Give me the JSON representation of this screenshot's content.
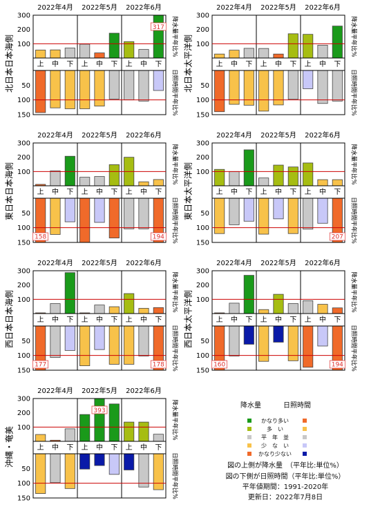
{
  "chart_data": [
    {
      "type": "bar",
      "region": "北日本日本海側",
      "months": [
        "2022年4月",
        "2022年5月",
        "2022年6月"
      ],
      "categories": [
        "上",
        "中",
        "下",
        "上",
        "中",
        "下",
        "上",
        "中",
        "下"
      ],
      "precip_axis_label": "降水量平年比%",
      "sunshine_axis_label": "日照時間平年比%",
      "precip_ticks": [
        "300",
        "200",
        "100"
      ],
      "sun_ticks": [
        "50",
        "100",
        "150"
      ],
      "precip": [
        56,
        57,
        70,
        97,
        36,
        174,
        115,
        60,
        317
      ],
      "precip_class": [
        "yellow",
        "yellow",
        "gray",
        "gray",
        "orange",
        "green",
        "olive",
        "gray",
        "green"
      ],
      "precip_overflow": [
        "",
        "",
        "",
        "",
        "",
        "",
        "",
        "",
        "317"
      ],
      "sunshine": [
        143,
        127,
        130,
        130,
        121,
        97,
        100,
        104,
        68
      ],
      "sun_class": [
        "orange",
        "yellow",
        "yellow",
        "yellow",
        "yellow",
        "gray",
        "gray",
        "gray",
        "lav"
      ],
      "sun_overflow": [
        "",
        "",
        "",
        "",
        "",
        "",
        "",
        "",
        ""
      ]
    },
    {
      "type": "bar",
      "region": "北日本太平洋側",
      "months": [
        "2022年4月",
        "2022年5月",
        "2022年6月"
      ],
      "categories": [
        "上",
        "中",
        "下",
        "上",
        "中",
        "下",
        "上",
        "中",
        "下"
      ],
      "precip_axis_label": "降水量平年比%",
      "sunshine_axis_label": "日照時間平年比%",
      "precip_ticks": [
        "300",
        "200",
        "100"
      ],
      "sun_ticks": [
        "50",
        "100",
        "150"
      ],
      "precip": [
        28,
        55,
        68,
        67,
        28,
        170,
        166,
        90,
        224
      ],
      "precip_class": [
        "yellow",
        "yellow",
        "gray",
        "gray",
        "orange",
        "olive",
        "olive",
        "gray",
        "green"
      ],
      "precip_overflow": [
        "",
        "",
        "",
        "",
        "",
        "",
        "",
        "",
        ""
      ],
      "sunshine": [
        140,
        115,
        118,
        138,
        117,
        98,
        62,
        112,
        104
      ],
      "sun_class": [
        "orange",
        "yellow",
        "yellow",
        "yellow",
        "yellow",
        "gray",
        "lav",
        "gray",
        "gray"
      ],
      "sun_overflow": [
        "",
        "",
        "",
        "",
        "",
        "",
        "",
        "",
        ""
      ]
    },
    {
      "type": "bar",
      "region": "東日本日本海側",
      "months": [
        "2022年4月",
        "2022年5月",
        "2022年6月"
      ],
      "categories": [
        "上",
        "中",
        "下",
        "上",
        "中",
        "下",
        "上",
        "中",
        "下"
      ],
      "precip_axis_label": "降水量平年比%",
      "sunshine_axis_label": "日照時間平年比%",
      "precip_ticks": [
        "300",
        "200",
        "100"
      ],
      "sun_ticks": [
        "50",
        "100",
        "150"
      ],
      "precip": [
        10,
        105,
        207,
        60,
        65,
        148,
        200,
        28,
        44
      ],
      "precip_class": [
        "orange",
        "gray",
        "green",
        "gray",
        "gray",
        "olive",
        "olive",
        "yellow",
        "yellow"
      ],
      "precip_overflow": [
        "",
        "",
        "",
        "",
        "",
        "",
        "",
        "",
        ""
      ],
      "sunshine": [
        158,
        123,
        80,
        158,
        82,
        135,
        104,
        104,
        194
      ],
      "sun_class": [
        "orange",
        "yellow",
        "lav",
        "orange",
        "lav",
        "orange",
        "gray",
        "gray",
        "orange"
      ],
      "sun_overflow": [
        "158",
        "",
        "",
        "",
        "",
        "",
        "",
        "",
        "194"
      ]
    },
    {
      "type": "bar",
      "region": "東日本太平洋側",
      "months": [
        "2022年4月",
        "2022年5月",
        "2022年6月"
      ],
      "categories": [
        "上",
        "中",
        "下",
        "上",
        "中",
        "下",
        "上",
        "中",
        "下"
      ],
      "precip_axis_label": "降水量平年比%",
      "sunshine_axis_label": "日照時間平年比%",
      "precip_ticks": [
        "300",
        "200",
        "100"
      ],
      "sun_ticks": [
        "50",
        "100",
        "150"
      ],
      "precip": [
        115,
        100,
        252,
        55,
        145,
        132,
        160,
        43,
        43
      ],
      "precip_class": [
        "olive",
        "gray",
        "green",
        "gray",
        "olive",
        "olive",
        "olive",
        "yellow",
        "yellow"
      ],
      "precip_overflow": [
        "",
        "",
        "",
        "",
        "",
        "",
        "",
        "",
        ""
      ],
      "sunshine": [
        120,
        90,
        78,
        122,
        70,
        120,
        105,
        85,
        207
      ],
      "sun_class": [
        "yellow",
        "gray",
        "lav",
        "yellow",
        "lav",
        "yellow",
        "gray",
        "lav",
        "orange"
      ],
      "sun_overflow": [
        "",
        "",
        "",
        "",
        "",
        "",
        "",
        "",
        "207"
      ]
    },
    {
      "type": "bar",
      "region": "西日本日本海側",
      "months": [
        "2022年4月",
        "2022年5月",
        "2022年6月"
      ],
      "categories": [
        "上",
        "中",
        "下",
        "上",
        "中",
        "下",
        "上",
        "中",
        "下"
      ],
      "precip_axis_label": "降水量平年比%",
      "sunshine_axis_label": "日照時間平年比%",
      "precip_ticks": [
        "300",
        "200",
        "100"
      ],
      "sun_ticks": [
        "50",
        "100",
        "150"
      ],
      "precip": [
        5,
        70,
        287,
        5,
        60,
        48,
        140,
        37,
        42
      ],
      "precip_class": [
        "orange",
        "gray",
        "green",
        "orange",
        "gray",
        "yellow",
        "olive",
        "yellow",
        "orange"
      ],
      "precip_overflow": [
        "",
        "",
        "",
        "",
        "",
        "",
        "",
        "",
        ""
      ],
      "sunshine": [
        177,
        107,
        83,
        135,
        80,
        130,
        130,
        102,
        178
      ],
      "sun_class": [
        "orange",
        "gray",
        "lav",
        "yellow",
        "lav",
        "yellow",
        "yellow",
        "gray",
        "orange"
      ],
      "sun_overflow": [
        "177",
        "",
        "",
        "",
        "",
        "",
        "",
        "",
        "178"
      ]
    },
    {
      "type": "bar",
      "region": "西日本太平洋側",
      "months": [
        "2022年4月",
        "2022年5月",
        "2022年6月"
      ],
      "categories": [
        "上",
        "中",
        "下",
        "上",
        "中",
        "下",
        "上",
        "中",
        "下"
      ],
      "precip_axis_label": "降水量平年比%",
      "sunshine_axis_label": "日照時間平年比%",
      "precip_ticks": [
        "300",
        "200",
        "100"
      ],
      "sun_ticks": [
        "50",
        "100",
        "150"
      ],
      "precip": [
        5,
        73,
        268,
        28,
        135,
        70,
        90,
        65,
        40
      ],
      "precip_class": [
        "orange",
        "gray",
        "green",
        "yellow",
        "olive",
        "gray",
        "gray",
        "yellow",
        "orange"
      ],
      "precip_overflow": [
        "",
        "",
        "",
        "",
        "",
        "",
        "",
        "",
        ""
      ],
      "sunshine": [
        160,
        102,
        62,
        120,
        55,
        118,
        140,
        68,
        194
      ],
      "sun_class": [
        "orange",
        "gray",
        "blue",
        "yellow",
        "blue",
        "yellow",
        "orange",
        "lav",
        "orange"
      ],
      "sun_overflow": [
        "160",
        "",
        "",
        "",
        "",
        "",
        "",
        "",
        "194"
      ]
    },
    {
      "type": "bar",
      "region": "沖縄・奄美",
      "months": [
        "2022年4月",
        "2022年5月",
        "2022年6月"
      ],
      "categories": [
        "上",
        "中",
        "下",
        "上",
        "中",
        "下",
        "上",
        "中",
        "下"
      ],
      "precip_axis_label": "降水量平年比%",
      "sunshine_axis_label": "日照時間平年比%",
      "precip_ticks": [
        "300",
        "200",
        "100"
      ],
      "sun_ticks": [
        "50",
        "100",
        "150"
      ],
      "precip": [
        48,
        8,
        88,
        188,
        393,
        262,
        135,
        135,
        50
      ],
      "precip_class": [
        "yellow",
        "orange",
        "gray",
        "green",
        "green",
        "green",
        "olive",
        "olive",
        "gray"
      ],
      "precip_overflow": [
        "",
        "",
        "",
        "",
        "393",
        "",
        "",
        "",
        ""
      ],
      "sunshine": [
        135,
        98,
        118,
        52,
        40,
        70,
        55,
        113,
        122
      ],
      "sun_class": [
        "yellow",
        "gray",
        "yellow",
        "blue",
        "blue",
        "lav",
        "blue",
        "gray",
        "yellow"
      ],
      "sun_overflow": [
        "",
        "",
        "",
        "",
        "",
        "",
        "",
        "",
        ""
      ]
    }
  ],
  "legend": {
    "col1": "降水量",
    "col2": "日照時間",
    "rows": [
      {
        "label": "かなり多い",
        "precip": "#1a9a1a",
        "sun": "#f06a2a"
      },
      {
        "label": "多　い",
        "precip": "#a6bd12",
        "sun": "#f8c24a"
      },
      {
        "label": "平　年　並",
        "precip": "#c8c8c8",
        "sun": "#c8c8c8"
      },
      {
        "label": "少　な　い",
        "precip": "#f8c24a",
        "sun": "#c8c8f8"
      },
      {
        "label": "かなり少ない",
        "precip": "#f06a2a",
        "sun": "#0a1aa8"
      }
    ]
  },
  "notes": [
    "図の上側が降水量　（平年比:単位%）",
    "図の下側が日照時間（平年比:単位%）",
    "平年値期間：1991-2020年",
    "更新日：2022年7月8日"
  ],
  "colors": {
    "green": "#1a9a1a",
    "olive": "#a6bd12",
    "gray": "#c8c8c8",
    "yellow": "#f8c24a",
    "orange": "#f06a2a",
    "lav": "#c8c8f8",
    "blue": "#0a1aa8",
    "normal_line": "#cc0000",
    "overflow_text": "#e03030"
  }
}
